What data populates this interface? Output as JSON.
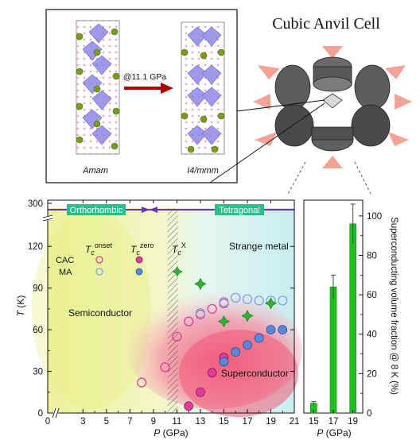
{
  "top": {
    "title": "Cubic Anvil Cell",
    "pressure_label": "@11.1 GPa",
    "left_structure": "Amam",
    "right_structure": "I4/mmm"
  },
  "phase_diagram": {
    "xlabel_main": "P",
    "xlabel_unit": " (GPa)",
    "ylabel_main": "T",
    "ylabel_unit": " (K)",
    "region_orthorhombic": "Orthorhombic",
    "region_tetragonal": "Tetragonal",
    "label_semiconductor": "Semiconductor",
    "label_superconductor": "Superconductor",
    "label_strange_metal": "Strange metal",
    "legend_cac": "CAC",
    "legend_ma": "MA",
    "tc_onset_base": "T",
    "tc_onset_sub": "c",
    "tc_onset_sup": "onset",
    "tc_zero_base": "T",
    "tc_zero_sub": "c",
    "tc_zero_sup": "zero",
    "tcx_base": "T",
    "tcx_sub": "c",
    "tcx_sup": "X",
    "colors": {
      "onset": "#e23c9b",
      "zero_cac": "#e23c9b",
      "zero_ma": "#5a87dc",
      "onset_ma": "#7ea3e6",
      "tcx": "#2db32d"
    }
  },
  "bar_chart": {
    "ylabel": "Superconducting volume fraction @ 8 K (%)",
    "xlabel_main": "P",
    "xlabel_unit": " (GPa)",
    "bar_color": "#1fbf1f"
  },
  "chart_data": [
    {
      "type": "scatter",
      "xlim": [
        0,
        21
      ],
      "ylim_lower": [
        0,
        135
      ],
      "ylim_upper_tick": 300,
      "x_ticks": [
        0,
        3,
        5,
        7,
        9,
        11,
        13,
        15,
        17,
        19,
        21
      ],
      "x_minor_ticks": [
        4,
        6,
        8,
        10,
        12,
        14,
        16,
        18,
        20
      ],
      "y_ticks": [
        0,
        30,
        60,
        90,
        120
      ],
      "y_tick_top": [
        300
      ],
      "structural_transition_gpa": [
        10.2,
        11.1
      ],
      "series": [
        {
          "name": "CAC Tc onset",
          "x": [
            8,
            10,
            11,
            12,
            13,
            14,
            15
          ],
          "y": [
            22,
            33,
            55,
            66,
            71,
            75,
            79
          ]
        },
        {
          "name": "MA Tc onset",
          "x": [
            13,
            15,
            16,
            17,
            18,
            19,
            20
          ],
          "y": [
            72,
            80,
            83,
            82,
            81,
            81,
            81
          ]
        },
        {
          "name": "CAC Tc zero",
          "x": [
            12,
            13,
            14,
            15
          ],
          "y": [
            5,
            15,
            29,
            40
          ]
        },
        {
          "name": "MA Tc zero",
          "x": [
            15,
            16,
            17,
            18,
            19,
            20
          ],
          "y": [
            37,
            44,
            49,
            54,
            60,
            60
          ]
        },
        {
          "name": "Tc X",
          "x": [
            13,
            15,
            17,
            19
          ],
          "y": [
            93,
            66,
            70,
            79
          ]
        }
      ],
      "legend": [
        {
          "name": "CAC",
          "marker": "open-circle",
          "color": "#e23c9b"
        },
        {
          "name": "MA",
          "marker": "open-circle",
          "color": "#7ea3e6"
        }
      ]
    },
    {
      "type": "bar",
      "categories": [
        "15",
        "17",
        "19"
      ],
      "values": [
        5,
        64,
        96
      ],
      "errors": [
        0.8,
        6,
        10
      ],
      "ylim": [
        0,
        108
      ],
      "y_ticks": [
        0,
        20,
        40,
        60,
        80,
        100
      ]
    }
  ]
}
